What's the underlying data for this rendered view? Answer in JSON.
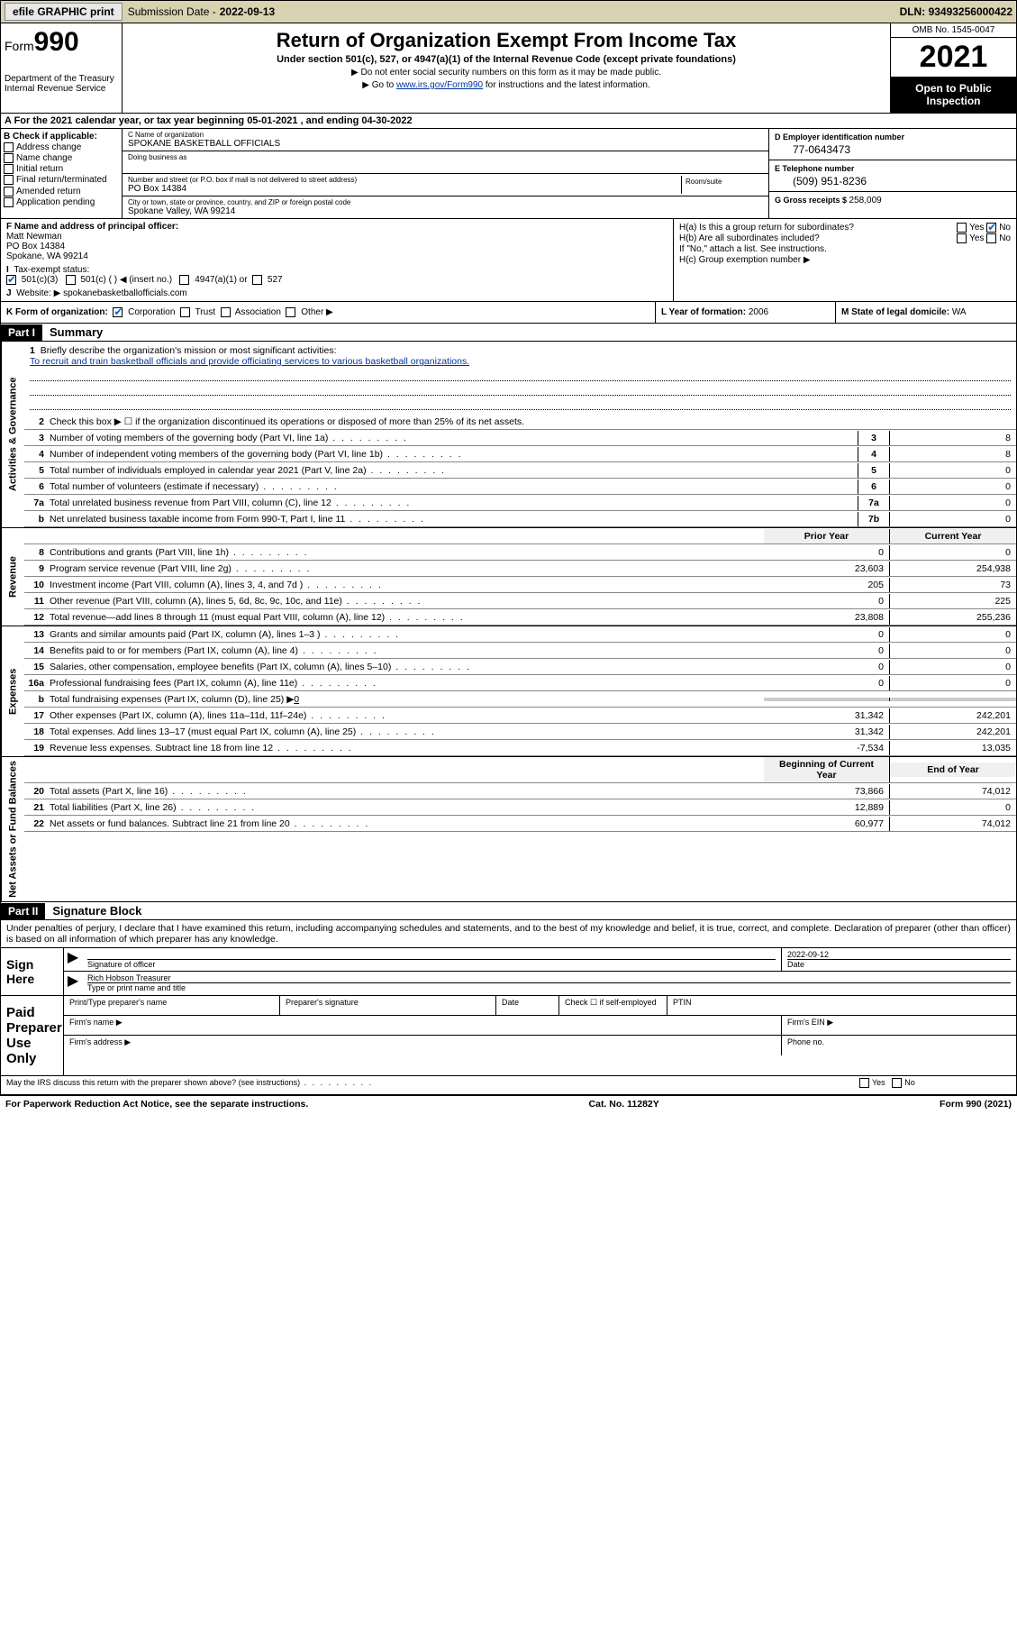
{
  "topbar": {
    "efile": "efile GRAPHIC print",
    "submission_label": "Submission Date - ",
    "submission_date": "2022-09-13",
    "dln_label": "DLN: ",
    "dln": "93493256000422"
  },
  "header": {
    "form_word": "Form",
    "form_num": "990",
    "dept": "Department of the Treasury\nInternal Revenue Service",
    "title": "Return of Organization Exempt From Income Tax",
    "subtitle": "Under section 501(c), 527, or 4947(a)(1) of the Internal Revenue Code (except private foundations)",
    "note1": "▶ Do not enter social security numbers on this form as it may be made public.",
    "note2_pre": "▶ Go to ",
    "note2_link": "www.irs.gov/Form990",
    "note2_post": " for instructions and the latest information.",
    "omb": "OMB No. 1545-0047",
    "year": "2021",
    "open": "Open to Public Inspection"
  },
  "period": "A For the 2021 calendar year, or tax year beginning 05-01-2021   , and ending 04-30-2022",
  "boxB": {
    "header": "B Check if applicable:",
    "items": [
      "Address change",
      "Name change",
      "Initial return",
      "Final return/terminated",
      "Amended return",
      "Application pending"
    ]
  },
  "boxC": {
    "name_lbl": "C Name of organization",
    "name": "SPOKANE BASKETBALL OFFICIALS",
    "dba_lbl": "Doing business as",
    "addr_lbl": "Number and street (or P.O. box if mail is not delivered to street address)",
    "suite_lbl": "Room/suite",
    "addr": "PO Box 14384",
    "city_lbl": "City or town, state or province, country, and ZIP or foreign postal code",
    "city": "Spokane Valley, WA  99214"
  },
  "boxD": {
    "ein_lbl": "D Employer identification number",
    "ein": "77-0643473",
    "phone_lbl": "E Telephone number",
    "phone": "(509) 951-8236",
    "gross_lbl": "G Gross receipts $ ",
    "gross": "258,009"
  },
  "boxF": {
    "lbl": "F Name and address of principal officer:",
    "name": "Matt Newman",
    "addr1": "PO Box 14384",
    "addr2": "Spokane, WA  99214"
  },
  "boxH": {
    "a_lbl": "H(a)  Is this a group return for subordinates?",
    "b_lbl": "H(b)  Are all subordinates included?",
    "b_note": "If \"No,\" attach a list. See instructions.",
    "c_lbl": "H(c)  Group exemption number ▶",
    "yes": "Yes",
    "no": "No"
  },
  "boxI": {
    "lbl": "Tax-exempt status:",
    "opt1": "501(c)(3)",
    "opt2": "501(c) (   ) ◀ (insert no.)",
    "opt3": "4947(a)(1) or",
    "opt4": "527"
  },
  "boxJ": {
    "lbl": "Website: ▶ ",
    "val": "spokanebasketballofficials.com"
  },
  "boxK": {
    "lbl": "K Form of organization:",
    "opts": [
      "Corporation",
      "Trust",
      "Association",
      "Other ▶"
    ]
  },
  "boxL": {
    "lbl": "L Year of formation: ",
    "val": "2006"
  },
  "boxM": {
    "lbl": "M State of legal domicile: ",
    "val": "WA"
  },
  "part1": {
    "hdr": "Part I",
    "title": "Summary"
  },
  "summary": {
    "sections": [
      {
        "vlabel": "Activities & Governance",
        "mission_lbl": "Briefly describe the organization's mission or most significant activities:",
        "mission": "To recruit and train basketball officials and provide officiating services to various basketball organizations.",
        "line2": "Check this box ▶ ☐  if the organization discontinued its operations or disposed of more than 25% of its net assets.",
        "rows": [
          {
            "n": "3",
            "d": "Number of voting members of the governing body (Part VI, line 1a)",
            "box": "3",
            "v": "8"
          },
          {
            "n": "4",
            "d": "Number of independent voting members of the governing body (Part VI, line 1b)",
            "box": "4",
            "v": "8"
          },
          {
            "n": "5",
            "d": "Total number of individuals employed in calendar year 2021 (Part V, line 2a)",
            "box": "5",
            "v": "0"
          },
          {
            "n": "6",
            "d": "Total number of volunteers (estimate if necessary)",
            "box": "6",
            "v": "0"
          },
          {
            "n": "7a",
            "d": "Total unrelated business revenue from Part VIII, column (C), line 12",
            "box": "7a",
            "v": "0"
          },
          {
            "n": "b",
            "d": "Net unrelated business taxable income from Form 990-T, Part I, line 11",
            "box": "7b",
            "v": "0"
          }
        ]
      }
    ],
    "col_prior": "Prior Year",
    "col_current": "Current Year",
    "revenue_label": "Revenue",
    "revenue_rows": [
      {
        "n": "8",
        "d": "Contributions and grants (Part VIII, line 1h)",
        "p": "0",
        "c": "0"
      },
      {
        "n": "9",
        "d": "Program service revenue (Part VIII, line 2g)",
        "p": "23,603",
        "c": "254,938"
      },
      {
        "n": "10",
        "d": "Investment income (Part VIII, column (A), lines 3, 4, and 7d )",
        "p": "205",
        "c": "73"
      },
      {
        "n": "11",
        "d": "Other revenue (Part VIII, column (A), lines 5, 6d, 8c, 9c, 10c, and 11e)",
        "p": "0",
        "c": "225"
      },
      {
        "n": "12",
        "d": "Total revenue—add lines 8 through 11 (must equal Part VIII, column (A), line 12)",
        "p": "23,808",
        "c": "255,236"
      }
    ],
    "expenses_label": "Expenses",
    "expenses_rows": [
      {
        "n": "13",
        "d": "Grants and similar amounts paid (Part IX, column (A), lines 1–3 )",
        "p": "0",
        "c": "0"
      },
      {
        "n": "14",
        "d": "Benefits paid to or for members (Part IX, column (A), line 4)",
        "p": "0",
        "c": "0"
      },
      {
        "n": "15",
        "d": "Salaries, other compensation, employee benefits (Part IX, column (A), lines 5–10)",
        "p": "0",
        "c": "0"
      },
      {
        "n": "16a",
        "d": "Professional fundraising fees (Part IX, column (A), line 11e)",
        "p": "0",
        "c": "0"
      }
    ],
    "line16b": "Total fundraising expenses (Part IX, column (D), line 25) ▶",
    "line16b_val": "0",
    "expenses_rows2": [
      {
        "n": "17",
        "d": "Other expenses (Part IX, column (A), lines 11a–11d, 11f–24e)",
        "p": "31,342",
        "c": "242,201"
      },
      {
        "n": "18",
        "d": "Total expenses. Add lines 13–17 (must equal Part IX, column (A), line 25)",
        "p": "31,342",
        "c": "242,201"
      },
      {
        "n": "19",
        "d": "Revenue less expenses. Subtract line 18 from line 12",
        "p": "-7,534",
        "c": "13,035"
      }
    ],
    "col_begin": "Beginning of Current Year",
    "col_end": "End of Year",
    "netassets_label": "Net Assets or Fund Balances",
    "netassets_rows": [
      {
        "n": "20",
        "d": "Total assets (Part X, line 16)",
        "p": "73,866",
        "c": "74,012"
      },
      {
        "n": "21",
        "d": "Total liabilities (Part X, line 26)",
        "p": "12,889",
        "c": "0"
      },
      {
        "n": "22",
        "d": "Net assets or fund balances. Subtract line 21 from line 20",
        "p": "60,977",
        "c": "74,012"
      }
    ]
  },
  "part2": {
    "hdr": "Part II",
    "title": "Signature Block",
    "declaration": "Under penalties of perjury, I declare that I have examined this return, including accompanying schedules and statements, and to the best of my knowledge and belief, it is true, correct, and complete. Declaration of preparer (other than officer) is based on all information of which preparer has any knowledge."
  },
  "sign": {
    "here": "Sign Here",
    "sig_lbl": "Signature of officer",
    "date_lbl": "Date",
    "date": "2022-09-12",
    "name": "Rich Hobson  Treasurer",
    "name_lbl": "Type or print name and title"
  },
  "paid": {
    "label": "Paid Preparer Use Only",
    "cols": [
      "Print/Type preparer's name",
      "Preparer's signature",
      "Date"
    ],
    "check_lbl": "Check ☐ if self-employed",
    "ptin": "PTIN",
    "firm_name": "Firm's name    ▶",
    "firm_ein": "Firm's EIN ▶",
    "firm_addr": "Firm's address ▶",
    "phone": "Phone no."
  },
  "discuss": "May the IRS discuss this return with the preparer shown above? (see instructions)",
  "footer": {
    "left": "For Paperwork Reduction Act Notice, see the separate instructions.",
    "mid": "Cat. No. 11282Y",
    "right": "Form 990 (2021)"
  }
}
